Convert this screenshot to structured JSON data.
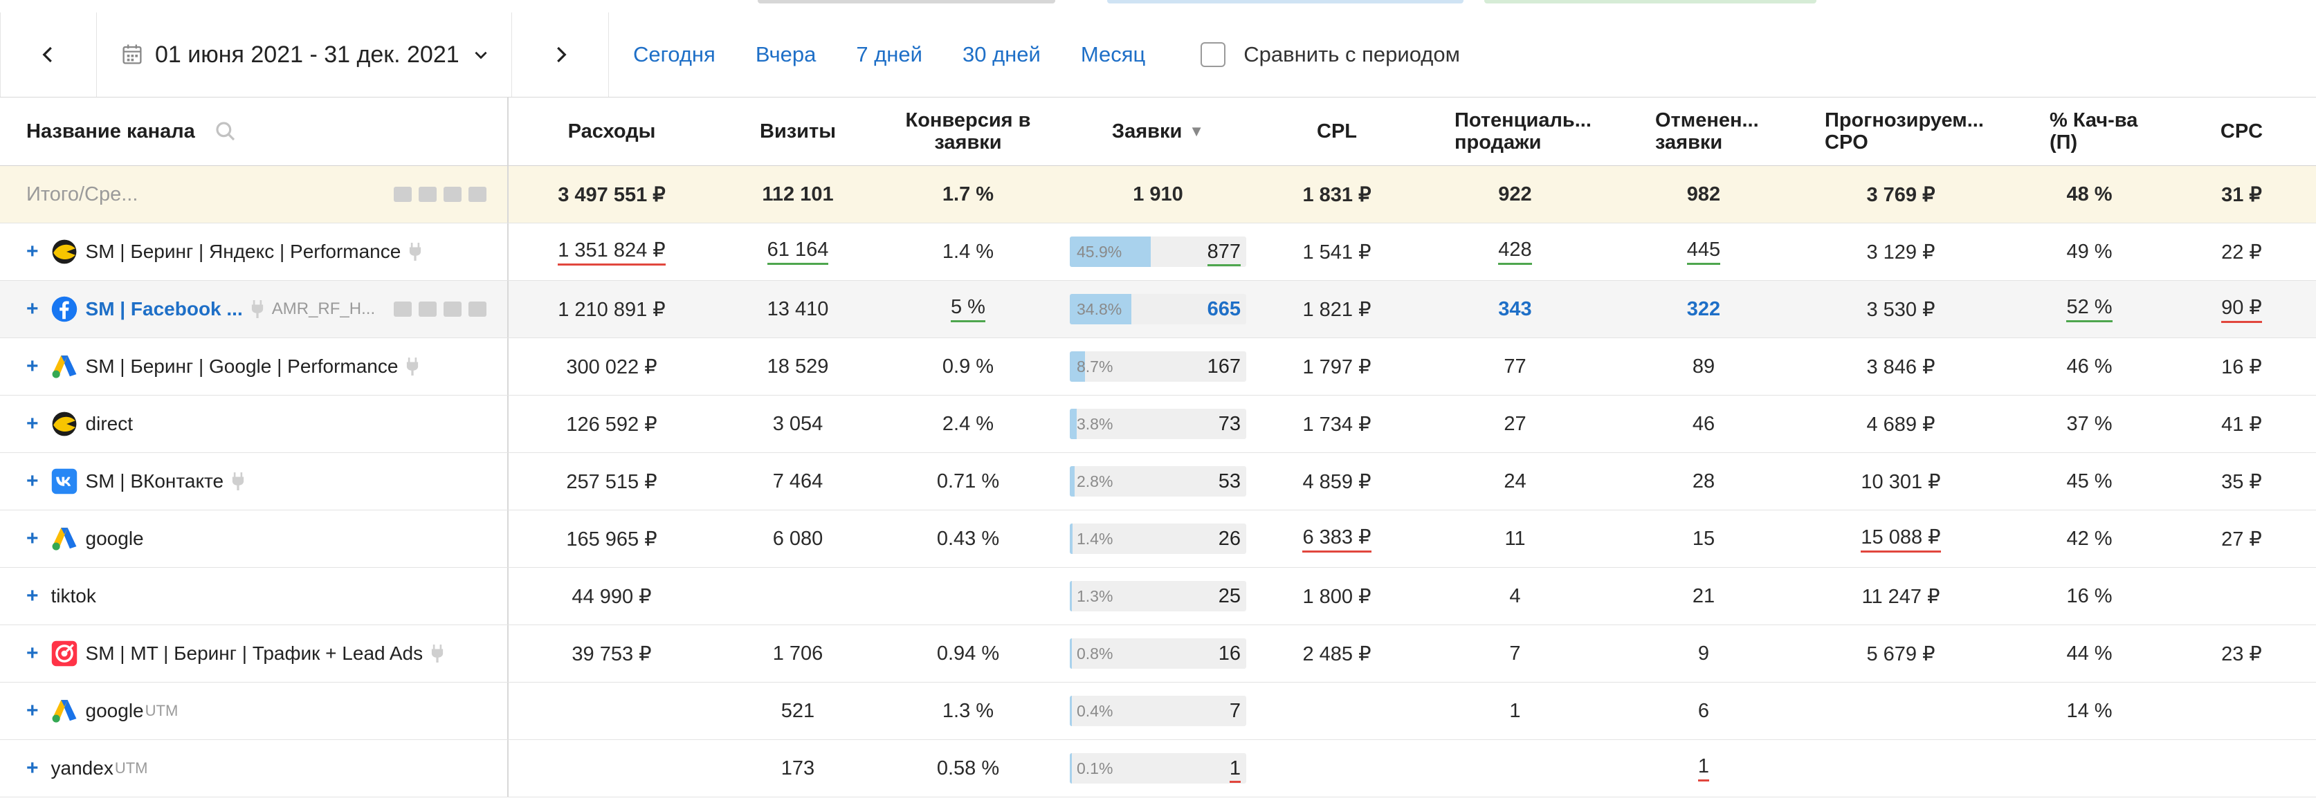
{
  "toolbar": {
    "date_range": "01 июня 2021 - 31 дек. 2021",
    "quick_links": [
      "Сегодня",
      "Вчера",
      "7 дней",
      "30 дней",
      "Месяц"
    ],
    "compare_label": "Сравнить с периодом"
  },
  "columns": {
    "name": "Название канала",
    "c1": "Расходы",
    "c2": "Визиты",
    "c3": "Конверсия в заявки",
    "c4": "Заявки",
    "c5": "CPL",
    "c6": "Потенциаль... продажи",
    "c7": "Отменен... заявки",
    "c8": "Прогнозируем... CPO",
    "c9": "% Кач-ва (П)",
    "c10": "CPC"
  },
  "total": {
    "name": "Итого/Сре...",
    "c1": "3 497 551 ₽",
    "c2": "112 101",
    "c3": "1.7 %",
    "c4": "1 910",
    "c5": "1 831 ₽",
    "c6": "922",
    "c7": "982",
    "c8": "3 769 ₽",
    "c9": "48 %",
    "c10": "31 ₽"
  },
  "rows": [
    {
      "name": "SM | Беринг | Яндекс | Performance",
      "icon": "yandex-direct-icon",
      "c1": "1 351 824 ₽",
      "c2": "61 164",
      "c3": "1.4 %",
      "bar_pct": "45.9%",
      "bar": 45.9,
      "c4": "877",
      "c5": "1 541 ₽",
      "c6": "428",
      "c7": "445",
      "c8": "3 129 ₽",
      "c9": "49 %",
      "c10": "22 ₽"
    },
    {
      "name": "SM | Facebook ...",
      "icon": "facebook-icon",
      "utm": "AMR_RF_H...",
      "c1": "1 210 891 ₽",
      "c2": "13 410",
      "c3": "5 %",
      "bar_pct": "34.8%",
      "bar": 34.8,
      "c4": "665",
      "c5": "1 821 ₽",
      "c6": "343",
      "c7": "322",
      "c8": "3 530 ₽",
      "c9": "52 %",
      "c10": "90 ₽"
    },
    {
      "name": "SM | Беринг | Google | Performance",
      "icon": "google-ads-icon",
      "c1": "300 022 ₽",
      "c2": "18 529",
      "c3": "0.9 %",
      "bar_pct": "8.7%",
      "bar": 8.7,
      "c4": "167",
      "c5": "1 797 ₽",
      "c6": "77",
      "c7": "89",
      "c8": "3 846 ₽",
      "c9": "46 %",
      "c10": "16 ₽"
    },
    {
      "name": "direct",
      "icon": "yandex-direct-icon",
      "c1": "126 592 ₽",
      "c2": "3 054",
      "c3": "2.4 %",
      "bar_pct": "3.8%",
      "bar": 3.8,
      "c4": "73",
      "c5": "1 734 ₽",
      "c6": "27",
      "c7": "46",
      "c8": "4 689 ₽",
      "c9": "37 %",
      "c10": "41 ₽"
    },
    {
      "name": "SM | ВКонтакте",
      "icon": "vk-icon",
      "c1": "257 515 ₽",
      "c2": "7 464",
      "c3": "0.71 %",
      "bar_pct": "2.8%",
      "bar": 2.8,
      "c4": "53",
      "c5": "4 859 ₽",
      "c6": "24",
      "c7": "28",
      "c8": "10 301 ₽",
      "c9": "45 %",
      "c10": "35 ₽"
    },
    {
      "name": "google",
      "icon": "google-ads-icon",
      "c1": "165 965 ₽",
      "c2": "6 080",
      "c3": "0.43 %",
      "bar_pct": "1.4%",
      "bar": 1.4,
      "c4": "26",
      "c5": "6 383 ₽",
      "c6": "11",
      "c7": "15",
      "c8": "15 088 ₽",
      "c9": "42 %",
      "c10": "27 ₽"
    },
    {
      "name": "tiktok",
      "icon": "",
      "c1": "44 990 ₽",
      "c2": "",
      "c3": "",
      "bar_pct": "1.3%",
      "bar": 1.3,
      "c4": "25",
      "c5": "1 800 ₽",
      "c6": "4",
      "c7": "21",
      "c8": "11 247 ₽",
      "c9": "16 %",
      "c10": ""
    },
    {
      "name": "SM | MT | Беринг | Трафик + Lead Ads",
      "icon": "mytarget-icon",
      "c1": "39 753 ₽",
      "c2": "1 706",
      "c3": "0.94 %",
      "bar_pct": "0.8%",
      "bar": 0.8,
      "c4": "16",
      "c5": "2 485 ₽",
      "c6": "7",
      "c7": "9",
      "c8": "5 679 ₽",
      "c9": "44 %",
      "c10": "23 ₽"
    },
    {
      "name": "google",
      "icon": "google-ads-icon",
      "sup": "UTM",
      "c1": "",
      "c2": "521",
      "c3": "1.3 %",
      "bar_pct": "0.4%",
      "bar": 0.4,
      "c4": "7",
      "c5": "",
      "c6": "1",
      "c7": "6",
      "c8": "",
      "c9": "14 %",
      "c10": ""
    },
    {
      "name": "yandex",
      "icon": "",
      "sup": "UTM",
      "c1": "",
      "c2": "173",
      "c3": "0.58 %",
      "bar_pct": "0.1%",
      "bar": 0.1,
      "c4": "1",
      "c5": "",
      "c6": "",
      "c7": "1",
      "c8": "",
      "c9": "",
      "c10": ""
    }
  ],
  "colors": {
    "link": "#1e6fc7",
    "bar": "#a9d2ed",
    "total_bg": "#fbf6e4",
    "underline_red": "#e1463d",
    "underline_green": "#4ea64e"
  }
}
